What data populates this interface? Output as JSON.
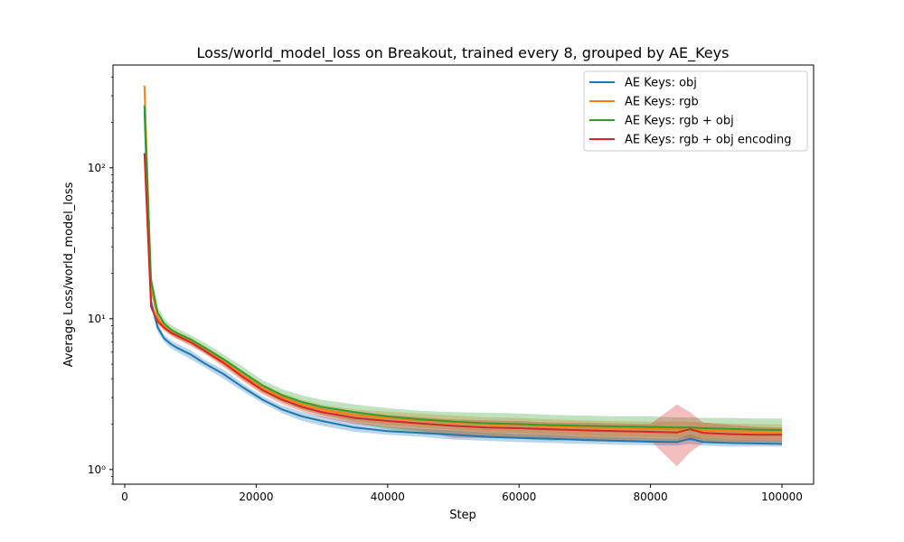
{
  "chart_data": {
    "type": "line",
    "title": "Loss/world_model_loss on Breakout, trained every 8, grouped by AE_Keys",
    "xlabel": "Step",
    "ylabel": "Average Loss/world_model_loss",
    "xlim": [
      0,
      100000
    ],
    "ylim": [
      0.8,
      480
    ],
    "yscale": "log",
    "xticks": [
      0,
      20000,
      40000,
      60000,
      80000,
      100000
    ],
    "xtick_labels": [
      "0",
      "20000",
      "40000",
      "60000",
      "80000",
      "100000"
    ],
    "yticks": [
      1,
      10,
      100
    ],
    "ytick_labels": [
      "10⁰",
      "10¹",
      "10²"
    ],
    "grid": false,
    "legend_position": "top-right",
    "x": [
      3000,
      4000,
      5000,
      6000,
      7000,
      8000,
      10000,
      12000,
      15000,
      18000,
      21000,
      24000,
      27000,
      30000,
      35000,
      40000,
      45000,
      50000,
      55000,
      60000,
      65000,
      70000,
      75000,
      80000,
      84000,
      86000,
      88000,
      92000,
      96000,
      100000
    ],
    "series": [
      {
        "name": "AE Keys: obj",
        "color": "#1f77b4",
        "values": [
          240,
          13,
          8.8,
          7.4,
          6.8,
          6.4,
          5.8,
          5.1,
          4.3,
          3.5,
          2.9,
          2.5,
          2.25,
          2.1,
          1.9,
          1.8,
          1.75,
          1.7,
          1.65,
          1.62,
          1.6,
          1.57,
          1.55,
          1.53,
          1.52,
          1.6,
          1.52,
          1.5,
          1.49,
          1.48
        ],
        "lower": [
          230,
          12,
          8.2,
          7.0,
          6.4,
          6.0,
          5.4,
          4.8,
          4.0,
          3.3,
          2.75,
          2.35,
          2.1,
          1.95,
          1.78,
          1.7,
          1.65,
          1.58,
          1.55,
          1.52,
          1.5,
          1.48,
          1.46,
          1.45,
          1.44,
          1.48,
          1.44,
          1.42,
          1.42,
          1.42
        ],
        "upper": [
          250,
          14,
          9.4,
          7.8,
          7.2,
          6.8,
          6.2,
          5.4,
          4.6,
          3.7,
          3.05,
          2.65,
          2.4,
          2.25,
          2.05,
          1.92,
          1.86,
          1.82,
          1.76,
          1.72,
          1.7,
          1.66,
          1.64,
          1.62,
          1.6,
          1.72,
          1.6,
          1.58,
          1.56,
          1.55
        ]
      },
      {
        "name": "AE Keys: rgb",
        "color": "#ff7f0e",
        "values": [
          350,
          16,
          10.2,
          8.9,
          8.2,
          7.8,
          7.1,
          6.3,
          5.2,
          4.2,
          3.45,
          3.0,
          2.7,
          2.5,
          2.3,
          2.2,
          2.12,
          2.05,
          2.0,
          1.97,
          1.93,
          1.9,
          1.88,
          1.86,
          1.85,
          1.85,
          1.82,
          1.8,
          1.78,
          1.77
        ],
        "lower": [
          340,
          15,
          9.6,
          8.4,
          7.8,
          7.4,
          6.7,
          6.0,
          4.9,
          3.9,
          3.2,
          2.8,
          2.5,
          2.3,
          2.1,
          1.98,
          1.9,
          1.84,
          1.78,
          1.75,
          1.72,
          1.68,
          1.66,
          1.64,
          1.62,
          1.62,
          1.6,
          1.58,
          1.56,
          1.55
        ],
        "upper": [
          360,
          17,
          10.8,
          9.4,
          8.6,
          8.2,
          7.5,
          6.6,
          5.5,
          4.5,
          3.7,
          3.2,
          2.9,
          2.7,
          2.5,
          2.42,
          2.35,
          2.28,
          2.22,
          2.2,
          2.15,
          2.12,
          2.1,
          2.08,
          2.08,
          2.08,
          2.05,
          2.02,
          2.0,
          1.99
        ]
      },
      {
        "name": "AE Keys: rgb + obj",
        "color": "#2ca02c",
        "values": [
          260,
          18,
          11.0,
          9.3,
          8.5,
          8.0,
          7.3,
          6.5,
          5.4,
          4.4,
          3.6,
          3.1,
          2.8,
          2.6,
          2.4,
          2.25,
          2.15,
          2.08,
          2.03,
          2.0,
          1.97,
          1.95,
          1.93,
          1.92,
          1.9,
          1.9,
          1.88,
          1.86,
          1.84,
          1.83
        ],
        "lower": [
          250,
          16,
          10.0,
          8.6,
          7.9,
          7.4,
          6.8,
          6.0,
          5.0,
          4.0,
          3.3,
          2.8,
          2.5,
          2.3,
          2.05,
          1.85,
          1.72,
          1.68,
          1.62,
          1.6,
          1.55,
          1.58,
          1.56,
          1.55,
          1.54,
          1.55,
          1.54,
          1.53,
          1.52,
          1.52
        ],
        "upper": [
          270,
          20,
          12.0,
          10.0,
          9.1,
          8.6,
          7.8,
          7.0,
          5.8,
          4.8,
          3.9,
          3.4,
          3.1,
          2.9,
          2.7,
          2.55,
          2.45,
          2.4,
          2.38,
          2.35,
          2.3,
          2.28,
          2.25,
          2.25,
          2.22,
          2.22,
          2.2,
          2.2,
          2.18,
          2.18
        ]
      },
      {
        "name": "AE Keys: rgb + obj encoding",
        "color": "#d62728",
        "values": [
          125,
          12,
          9.6,
          8.7,
          8.1,
          7.7,
          7.0,
          6.2,
          5.1,
          4.1,
          3.35,
          2.9,
          2.6,
          2.4,
          2.2,
          2.1,
          2.02,
          1.95,
          1.9,
          1.88,
          1.85,
          1.82,
          1.8,
          1.78,
          1.76,
          1.85,
          1.75,
          1.72,
          1.7,
          1.7
        ],
        "lower": [
          120,
          11.5,
          9.2,
          8.3,
          7.7,
          7.3,
          6.6,
          5.9,
          4.8,
          3.85,
          3.15,
          2.7,
          2.42,
          2.22,
          2.0,
          1.9,
          1.8,
          1.62,
          1.62,
          1.62,
          1.6,
          1.58,
          1.56,
          1.55,
          1.05,
          1.3,
          1.5,
          1.52,
          1.5,
          1.5
        ],
        "upper": [
          130,
          12.5,
          10.0,
          9.1,
          8.5,
          8.1,
          7.4,
          6.5,
          5.4,
          4.35,
          3.55,
          3.1,
          2.8,
          2.6,
          2.4,
          2.3,
          2.22,
          2.15,
          2.12,
          2.1,
          2.05,
          2.05,
          2.02,
          2.0,
          2.7,
          2.4,
          2.05,
          1.98,
          1.92,
          1.9
        ]
      }
    ]
  }
}
